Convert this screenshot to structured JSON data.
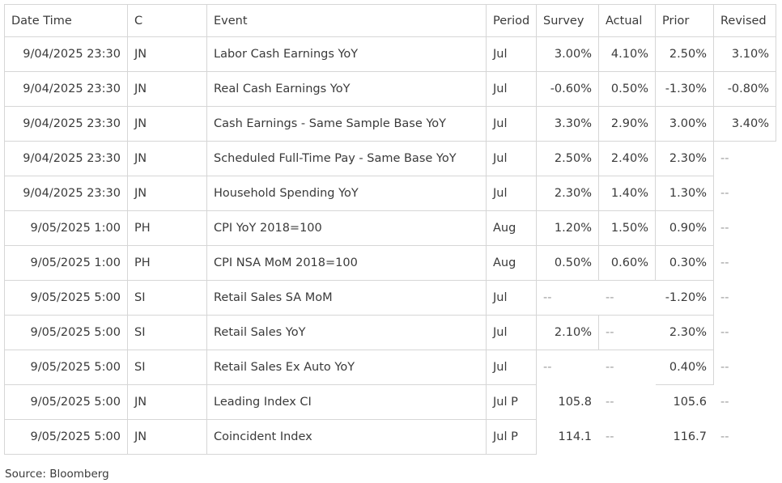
{
  "headers": [
    "Date Time",
    "C",
    "Event",
    "Period",
    "Survey",
    "Actual",
    "Prior",
    "Revised"
  ],
  "rows": [
    {
      "datetime": "9/04/2025 23:30",
      "country": "JN",
      "event": "Labor Cash Earnings YoY",
      "period": "Jul",
      "survey": "3.00%",
      "actual": "4.10%",
      "prior": "2.50%",
      "revised": "3.10%"
    },
    {
      "datetime": "9/04/2025 23:30",
      "country": "JN",
      "event": "Real Cash Earnings YoY",
      "period": "Jul",
      "survey": "-0.60%",
      "actual": "0.50%",
      "prior": "-1.30%",
      "revised": "-0.80%"
    },
    {
      "datetime": "9/04/2025 23:30",
      "country": "JN",
      "event": "Cash Earnings - Same Sample Base YoY",
      "period": "Jul",
      "survey": "3.30%",
      "actual": "2.90%",
      "prior": "3.00%",
      "revised": "3.40%"
    },
    {
      "datetime": "9/04/2025 23:30",
      "country": "JN",
      "event": "Scheduled Full-Time Pay - Same Base YoY",
      "period": "Jul",
      "survey": "2.50%",
      "actual": "2.40%",
      "prior": "2.30%",
      "revised": "--"
    },
    {
      "datetime": "9/04/2025 23:30",
      "country": "JN",
      "event": "Household Spending YoY",
      "period": "Jul",
      "survey": "2.30%",
      "actual": "1.40%",
      "prior": "1.30%",
      "revised": "--"
    },
    {
      "datetime": "9/05/2025 1:00",
      "country": "PH",
      "event": "CPI YoY 2018=100",
      "period": "Aug",
      "survey": "1.20%",
      "actual": "1.50%",
      "prior": "0.90%",
      "revised": "--"
    },
    {
      "datetime": "9/05/2025 1:00",
      "country": "PH",
      "event": "CPI NSA MoM 2018=100",
      "period": "Aug",
      "survey": "0.50%",
      "actual": "0.60%",
      "prior": "0.30%",
      "revised": "--"
    },
    {
      "datetime": "9/05/2025 5:00",
      "country": "SI",
      "event": "Retail Sales SA MoM",
      "period": "Jul",
      "survey": "--",
      "actual": "--",
      "prior": "-1.20%",
      "revised": "--"
    },
    {
      "datetime": "9/05/2025 5:00",
      "country": "SI",
      "event": "Retail Sales YoY",
      "period": "Jul",
      "survey": "2.10%",
      "actual": "--",
      "prior": "2.30%",
      "revised": "--"
    },
    {
      "datetime": "9/05/2025 5:00",
      "country": "SI",
      "event": "Retail Sales Ex Auto YoY",
      "period": "Jul",
      "survey": "--",
      "actual": "--",
      "prior": "0.40%",
      "revised": "--"
    },
    {
      "datetime": "9/05/2025 5:00",
      "country": "JN",
      "event": "Leading Index CI",
      "period": "Jul P",
      "survey": "105.8",
      "actual": "--",
      "prior": "105.6",
      "revised": "--"
    },
    {
      "datetime": "9/05/2025 5:00",
      "country": "JN",
      "event": "Coincident Index",
      "period": "Jul P",
      "survey": "114.1",
      "actual": "--",
      "prior": "116.7",
      "revised": "--"
    }
  ],
  "source": "Source: Bloomberg"
}
